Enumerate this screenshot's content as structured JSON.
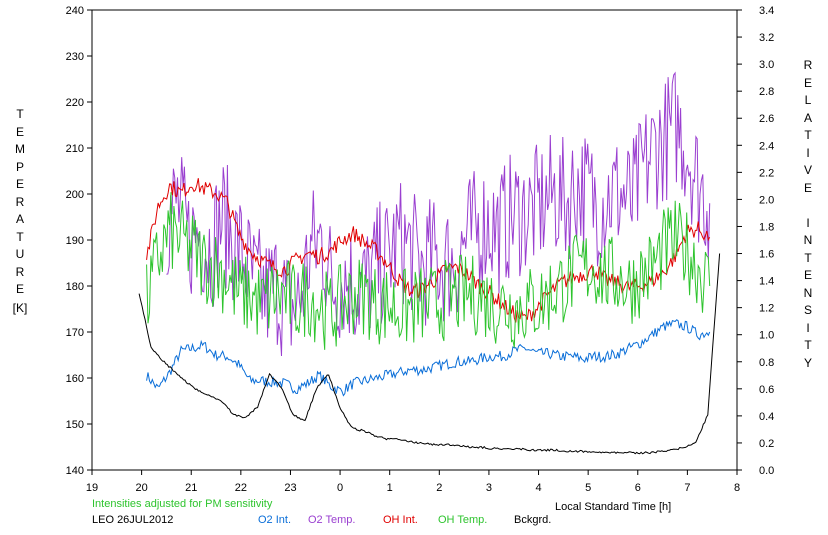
{
  "chart_data": {
    "type": "line",
    "xlabel": "Local Standard Time [h]",
    "ylabel_left_letters": [
      "T",
      "E",
      "M",
      "P",
      "E",
      "R",
      "A",
      "T",
      "U",
      "R",
      "E"
    ],
    "ylabel_left_unit": "[K]",
    "ylabel_right_letters": [
      "R",
      "E",
      "L",
      "A",
      "T",
      "I",
      "V",
      "E",
      "",
      "I",
      "N",
      "T",
      "E",
      "N",
      "S",
      "I",
      "T",
      "Y"
    ],
    "note": "Intensities adjusted for PM sensitivity",
    "station": "LEO 26JUL2012",
    "x_ticks": [
      "19",
      "20",
      "21",
      "22",
      "23",
      "0",
      "1",
      "2",
      "3",
      "4",
      "5",
      "6",
      "7",
      "8"
    ],
    "x_range": [
      19,
      32
    ],
    "y_left_range": [
      140,
      240
    ],
    "y_left_ticks": [
      "140",
      "150",
      "160",
      "170",
      "180",
      "190",
      "200",
      "210",
      "220",
      "230",
      "240"
    ],
    "y_right_range": [
      0.0,
      3.4
    ],
    "y_right_ticks": [
      "0.0",
      "0.2",
      "0.4",
      "0.6",
      "0.8",
      "1.0",
      "1.2",
      "1.4",
      "1.6",
      "1.8",
      "2.0",
      "2.2",
      "2.4",
      "2.6",
      "2.8",
      "3.0",
      "3.2",
      "3.4"
    ],
    "series": [
      {
        "name": "O2 Int.",
        "color": "#0a6ed8",
        "axis": "right",
        "x_start": 20.1,
        "x_end": 31.45,
        "values": [
          0.7,
          0.6,
          0.72,
          0.88,
          0.9,
          0.92,
          0.85,
          0.84,
          0.78,
          0.66,
          0.66,
          0.65,
          0.64,
          0.6,
          0.64,
          0.7,
          0.62,
          0.58,
          0.64,
          0.66,
          0.68,
          0.7,
          0.72,
          0.74,
          0.74,
          0.76,
          0.78,
          0.8,
          0.8,
          0.82,
          0.84,
          0.84,
          0.88,
          0.9,
          0.86,
          0.86,
          0.84,
          0.84,
          0.82,
          0.84,
          0.84,
          0.86,
          0.9,
          0.94,
          1.0,
          1.06,
          1.08,
          1.06,
          1.0,
          1.02
        ]
      },
      {
        "name": "O2 Temp.",
        "color": "#9a3fd0",
        "axis": "left",
        "x_start": 20.5,
        "x_end": 31.45,
        "values": [
          195,
          198,
          190,
          192,
          188,
          195,
          190,
          186,
          180,
          178,
          180,
          175,
          176,
          188,
          190,
          180,
          182,
          180,
          180,
          184,
          186,
          190,
          188,
          184,
          186,
          185,
          185,
          190,
          192,
          194,
          192,
          195,
          196,
          196,
          198,
          200,
          198,
          202,
          200,
          198,
          200,
          200,
          198,
          205,
          210,
          212,
          215,
          210,
          202,
          198
        ]
      },
      {
        "name": "OH Int.",
        "color": "#e00000",
        "axis": "right",
        "x_start": 20.1,
        "x_end": 31.45,
        "values": [
          1.58,
          1.95,
          2.1,
          2.05,
          2.12,
          2.08,
          2.05,
          1.98,
          1.75,
          1.62,
          1.55,
          1.5,
          1.48,
          1.55,
          1.6,
          1.58,
          1.62,
          1.7,
          1.75,
          1.68,
          1.62,
          1.52,
          1.4,
          1.32,
          1.34,
          1.4,
          1.48,
          1.5,
          1.44,
          1.36,
          1.3,
          1.22,
          1.15,
          1.12,
          1.2,
          1.3,
          1.38,
          1.42,
          1.45,
          1.48,
          1.4,
          1.38,
          1.35,
          1.36,
          1.4,
          1.46,
          1.58,
          1.76,
          1.78,
          1.72
        ]
      },
      {
        "name": "OH Temp.",
        "color": "#2ec42e",
        "axis": "left",
        "x_start": 20.1,
        "x_end": 31.45,
        "values": [
          176,
          186,
          192,
          190,
          188,
          185,
          184,
          182,
          178,
          178,
          176,
          178,
          178,
          176,
          178,
          176,
          174,
          176,
          178,
          178,
          176,
          176,
          175,
          175,
          176,
          176,
          177,
          178,
          178,
          178,
          176,
          176,
          175,
          176,
          176,
          178,
          180,
          182,
          184,
          184,
          182,
          182,
          180,
          182,
          184,
          188,
          190,
          188,
          184,
          180
        ]
      },
      {
        "name": "Bckgrd.",
        "color": "#000000",
        "axis": "right",
        "x_start": 19.95,
        "x_end": 31.65,
        "values": [
          1.3,
          0.9,
          0.8,
          0.72,
          0.64,
          0.58,
          0.54,
          0.5,
          0.4,
          0.38,
          0.46,
          0.7,
          0.6,
          0.4,
          0.36,
          0.6,
          0.7,
          0.44,
          0.3,
          0.28,
          0.24,
          0.22,
          0.22,
          0.2,
          0.19,
          0.18,
          0.18,
          0.17,
          0.16,
          0.16,
          0.15,
          0.15,
          0.15,
          0.14,
          0.14,
          0.14,
          0.13,
          0.13,
          0.13,
          0.12,
          0.12,
          0.12,
          0.12,
          0.12,
          0.13,
          0.14,
          0.16,
          0.2,
          0.4,
          1.6
        ]
      }
    ]
  }
}
